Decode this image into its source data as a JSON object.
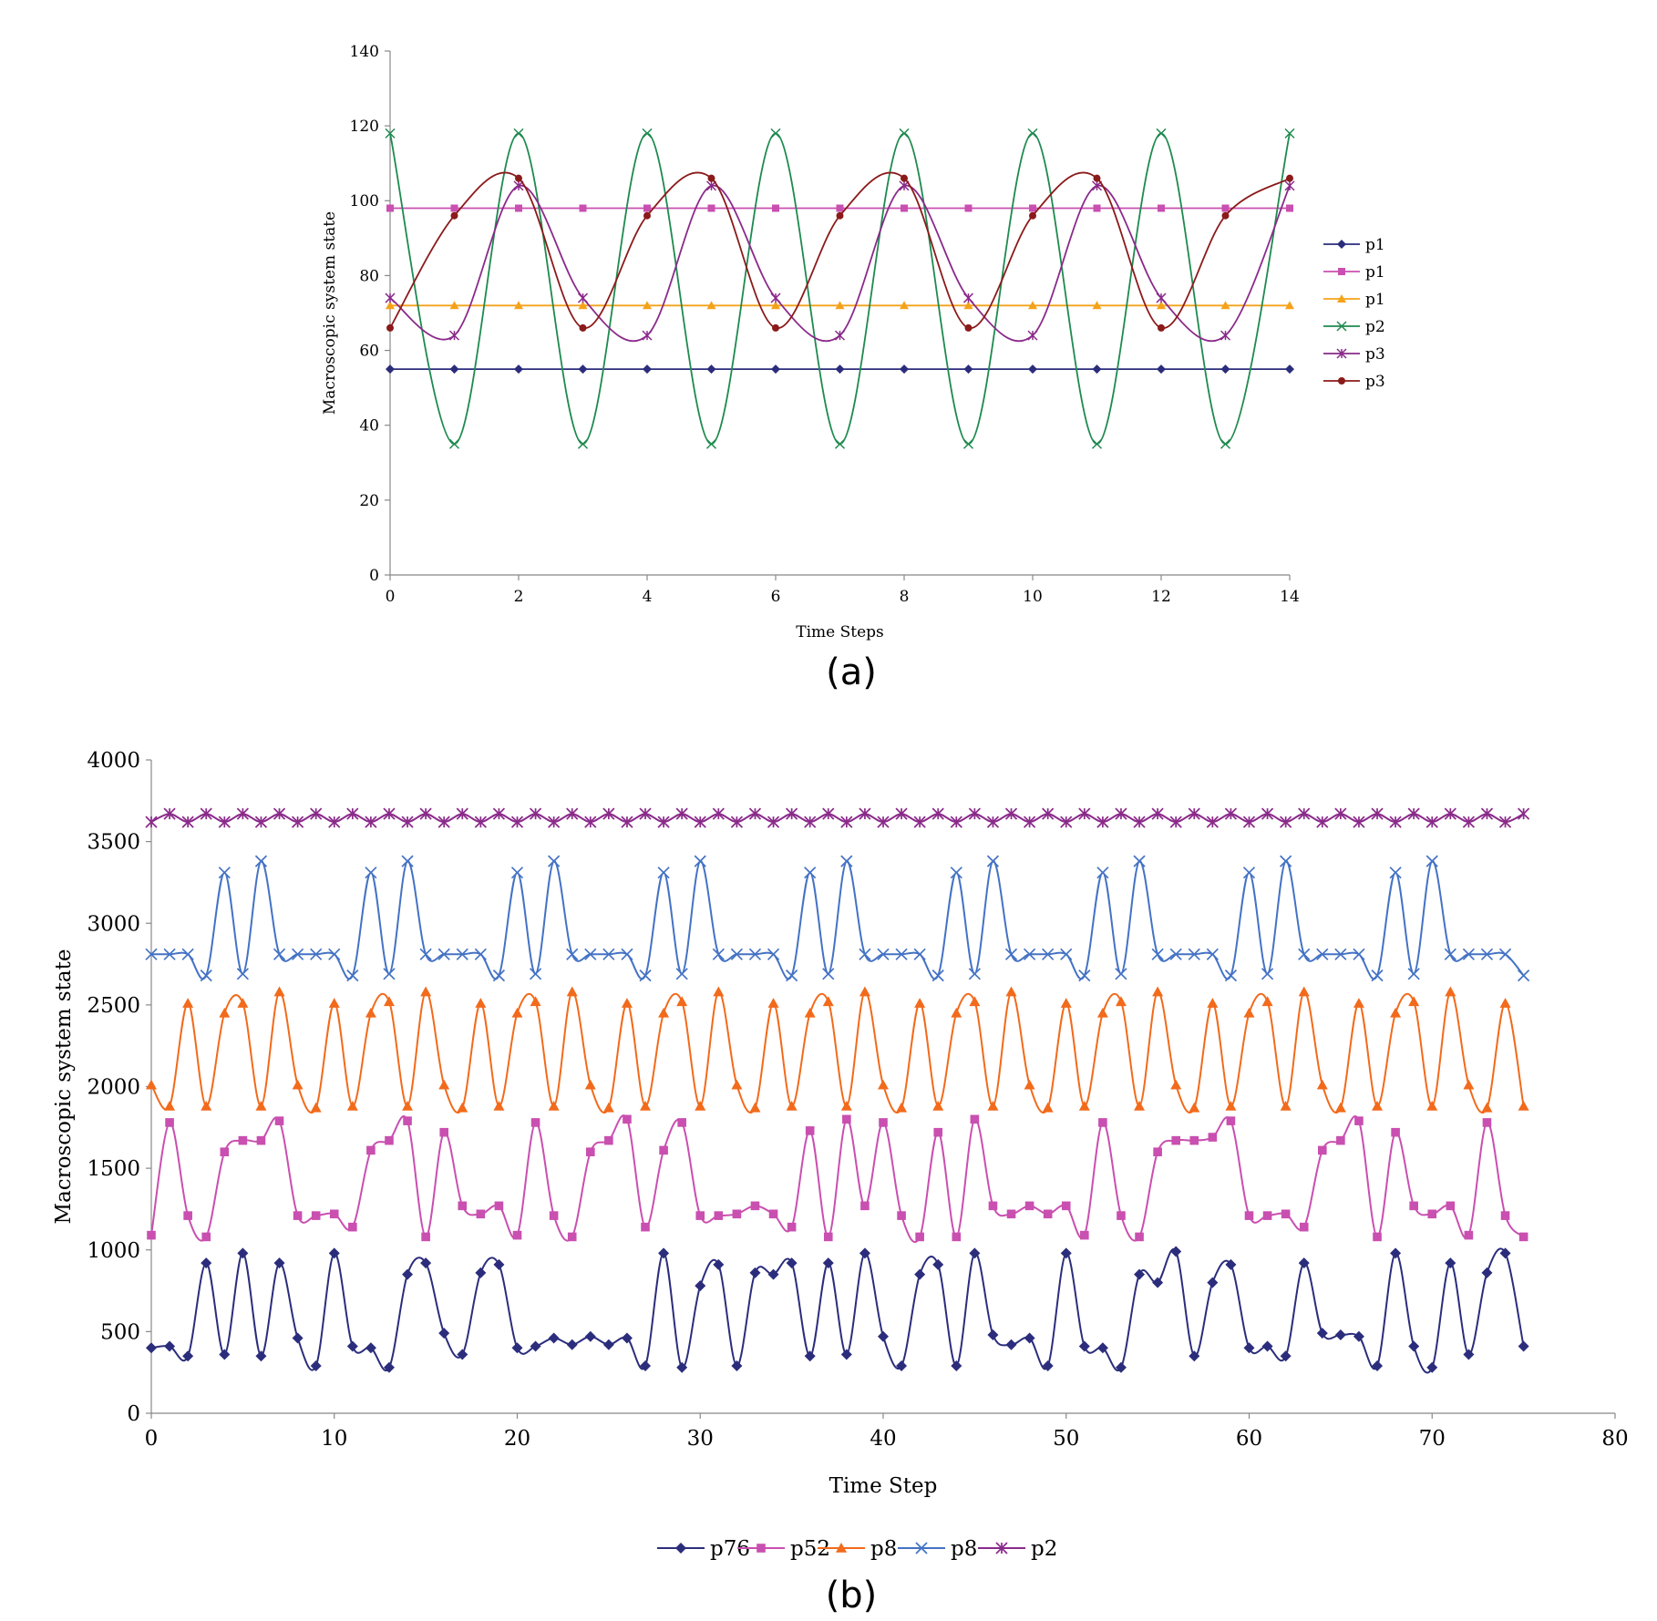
{
  "captions": {
    "a": "(a)",
    "b": "(b)"
  },
  "chart_data": [
    {
      "type": "line",
      "title": "",
      "xlabel": "Time Steps",
      "ylabel": "Macroscopic system state",
      "xlim": [
        0,
        14
      ],
      "ylim": [
        0,
        140
      ],
      "xticks": [
        0,
        2,
        4,
        6,
        8,
        10,
        12,
        14
      ],
      "yticks": [
        0,
        20,
        40,
        60,
        80,
        100,
        120,
        140
      ],
      "grid": false,
      "legend_position": "right",
      "smooth": true,
      "x": [
        0,
        1,
        2,
        3,
        4,
        5,
        6,
        7,
        8,
        9,
        10,
        11,
        12,
        13,
        14
      ],
      "series": [
        {
          "name": "p1",
          "color": "#2b2d7c",
          "marker": "diamond",
          "values": [
            55,
            55,
            55,
            55,
            55,
            55,
            55,
            55,
            55,
            55,
            55,
            55,
            55,
            55,
            55
          ]
        },
        {
          "name": "p1",
          "color": "#c94fb0",
          "marker": "square",
          "values": [
            98,
            98,
            98,
            98,
            98,
            98,
            98,
            98,
            98,
            98,
            98,
            98,
            98,
            98,
            98
          ]
        },
        {
          "name": "p1",
          "color": "#f5a21a",
          "marker": "triangle",
          "values": [
            72,
            72,
            72,
            72,
            72,
            72,
            72,
            72,
            72,
            72,
            72,
            72,
            72,
            72,
            72
          ]
        },
        {
          "name": "p2",
          "color": "#1e8a4f",
          "marker": "x",
          "values": [
            118,
            35,
            118,
            35,
            118,
            35,
            118,
            35,
            118,
            35,
            118,
            35,
            118,
            35,
            118
          ]
        },
        {
          "name": "p3",
          "color": "#8a2a8a",
          "marker": "star",
          "values": [
            74,
            64,
            104,
            74,
            64,
            104,
            74,
            64,
            104,
            74,
            64,
            104,
            74,
            64,
            104
          ]
        },
        {
          "name": "p3",
          "color": "#8b1a1a",
          "marker": "circle",
          "values": [
            66,
            96,
            106,
            66,
            96,
            106,
            66,
            96,
            106,
            66,
            96,
            106,
            66,
            96,
            106
          ]
        }
      ]
    },
    {
      "type": "line",
      "title": "",
      "xlabel": "Time Step",
      "ylabel": "Macroscopic system state",
      "xlim": [
        0,
        80
      ],
      "ylim": [
        0,
        4000
      ],
      "xticks": [
        0,
        10,
        20,
        30,
        40,
        50,
        60,
        70,
        80
      ],
      "yticks": [
        0,
        500,
        1000,
        1500,
        2000,
        2500,
        3000,
        3500,
        4000
      ],
      "grid": false,
      "legend_position": "bottom",
      "smooth": true,
      "x_start": 0,
      "x_end": 75,
      "series": [
        {
          "name": "p76",
          "color": "#2b2d7c",
          "marker": "diamond",
          "values": [
            400,
            410,
            350,
            920,
            360,
            980,
            350,
            920,
            460,
            290,
            980,
            410,
            400,
            280,
            850,
            920,
            490,
            360,
            860,
            910,
            400,
            410,
            460,
            420,
            470,
            420,
            460,
            290,
            980,
            280,
            780,
            910,
            290,
            860,
            850,
            920,
            350,
            920,
            360,
            980,
            470,
            290,
            850,
            910,
            290,
            980,
            480,
            420,
            460,
            290,
            980,
            410,
            400,
            280,
            850,
            800,
            990,
            350,
            800,
            910,
            400,
            410,
            350,
            920,
            490,
            480,
            470,
            290,
            980,
            410,
            280,
            920,
            360,
            860,
            980,
            410
          ]
        },
        {
          "name": "p52",
          "color": "#c94fb0",
          "marker": "square",
          "values": [
            1090,
            1780,
            1210,
            1080,
            1600,
            1670,
            1670,
            1790,
            1210,
            1210,
            1220,
            1140,
            1610,
            1670,
            1790,
            1080,
            1720,
            1270,
            1220,
            1270,
            1090,
            1780,
            1210,
            1080,
            1600,
            1670,
            1800,
            1140,
            1610,
            1780,
            1210,
            1210,
            1220,
            1270,
            1220,
            1140,
            1730,
            1080,
            1800,
            1270,
            1780,
            1210,
            1080,
            1720,
            1080,
            1800,
            1270,
            1220,
            1270,
            1220,
            1270,
            1090,
            1780,
            1210,
            1080,
            1600,
            1670,
            1670,
            1690,
            1790,
            1210,
            1210,
            1220,
            1140,
            1610,
            1670,
            1790,
            1080,
            1720,
            1270,
            1220,
            1270,
            1090,
            1780,
            1210,
            1080
          ]
        },
        {
          "name": "p8",
          "color": "#f26a1b",
          "marker": "triangle",
          "values": [
            2010,
            1880,
            2510,
            1880,
            2450,
            2510,
            1880,
            2580,
            2010,
            1870,
            2510,
            1880,
            2450,
            2520,
            1880,
            2580,
            2010,
            1870,
            2510,
            1880,
            2450,
            2520,
            1880,
            2580,
            2010,
            1870,
            2510,
            1880,
            2450,
            2520,
            1880,
            2580,
            2010,
            1870,
            2510,
            1880,
            2450,
            2520,
            1880,
            2580,
            2010,
            1870,
            2510,
            1880,
            2450,
            2520,
            1880,
            2580,
            2010,
            1870,
            2510,
            1880,
            2450,
            2520,
            1880,
            2580,
            2010,
            1870,
            2510,
            1880,
            2450,
            2520,
            1880,
            2580,
            2010,
            1870,
            2510,
            1880,
            2450,
            2520,
            1880,
            2580,
            2010,
            1870,
            2510,
            1880
          ]
        },
        {
          "name": "p8",
          "color": "#4472c4",
          "marker": "x",
          "values": [
            2810,
            2810,
            2810,
            2680,
            3310,
            2690,
            3380,
            2810,
            2810,
            2810,
            2810,
            2680,
            3310,
            2690,
            3380,
            2810,
            2810,
            2810,
            2810,
            2680,
            3310,
            2690,
            3380,
            2810,
            2810,
            2810,
            2810,
            2680,
            3310,
            2690,
            3380,
            2810,
            2810,
            2810,
            2810,
            2680,
            3310,
            2690,
            3380,
            2810,
            2810,
            2810,
            2810,
            2680,
            3310,
            2690,
            3380,
            2810,
            2810,
            2810,
            2810,
            2680,
            3310,
            2690,
            3380,
            2810,
            2810,
            2810,
            2810,
            2680,
            3310,
            2690,
            3380,
            2810,
            2810,
            2810,
            2810,
            2680,
            3310,
            2690,
            3380,
            2810,
            2810,
            2810,
            2810,
            2680
          ]
        },
        {
          "name": "p2",
          "color": "#8a2a8a",
          "marker": "star",
          "values": [
            3620,
            3670,
            3620,
            3670,
            3620,
            3670,
            3620,
            3670,
            3620,
            3670,
            3620,
            3670,
            3620,
            3670,
            3620,
            3670,
            3620,
            3670,
            3620,
            3670,
            3620,
            3670,
            3620,
            3670,
            3620,
            3670,
            3620,
            3670,
            3620,
            3670,
            3620,
            3670,
            3620,
            3670,
            3620,
            3670,
            3620,
            3670,
            3620,
            3670,
            3620,
            3670,
            3620,
            3670,
            3620,
            3670,
            3620,
            3670,
            3620,
            3670,
            3620,
            3670,
            3620,
            3670,
            3620,
            3670,
            3620,
            3670,
            3620,
            3670,
            3620,
            3670,
            3620,
            3670,
            3620,
            3670,
            3620,
            3670,
            3620,
            3670,
            3620,
            3670,
            3620,
            3670,
            3620,
            3670
          ]
        }
      ]
    }
  ]
}
